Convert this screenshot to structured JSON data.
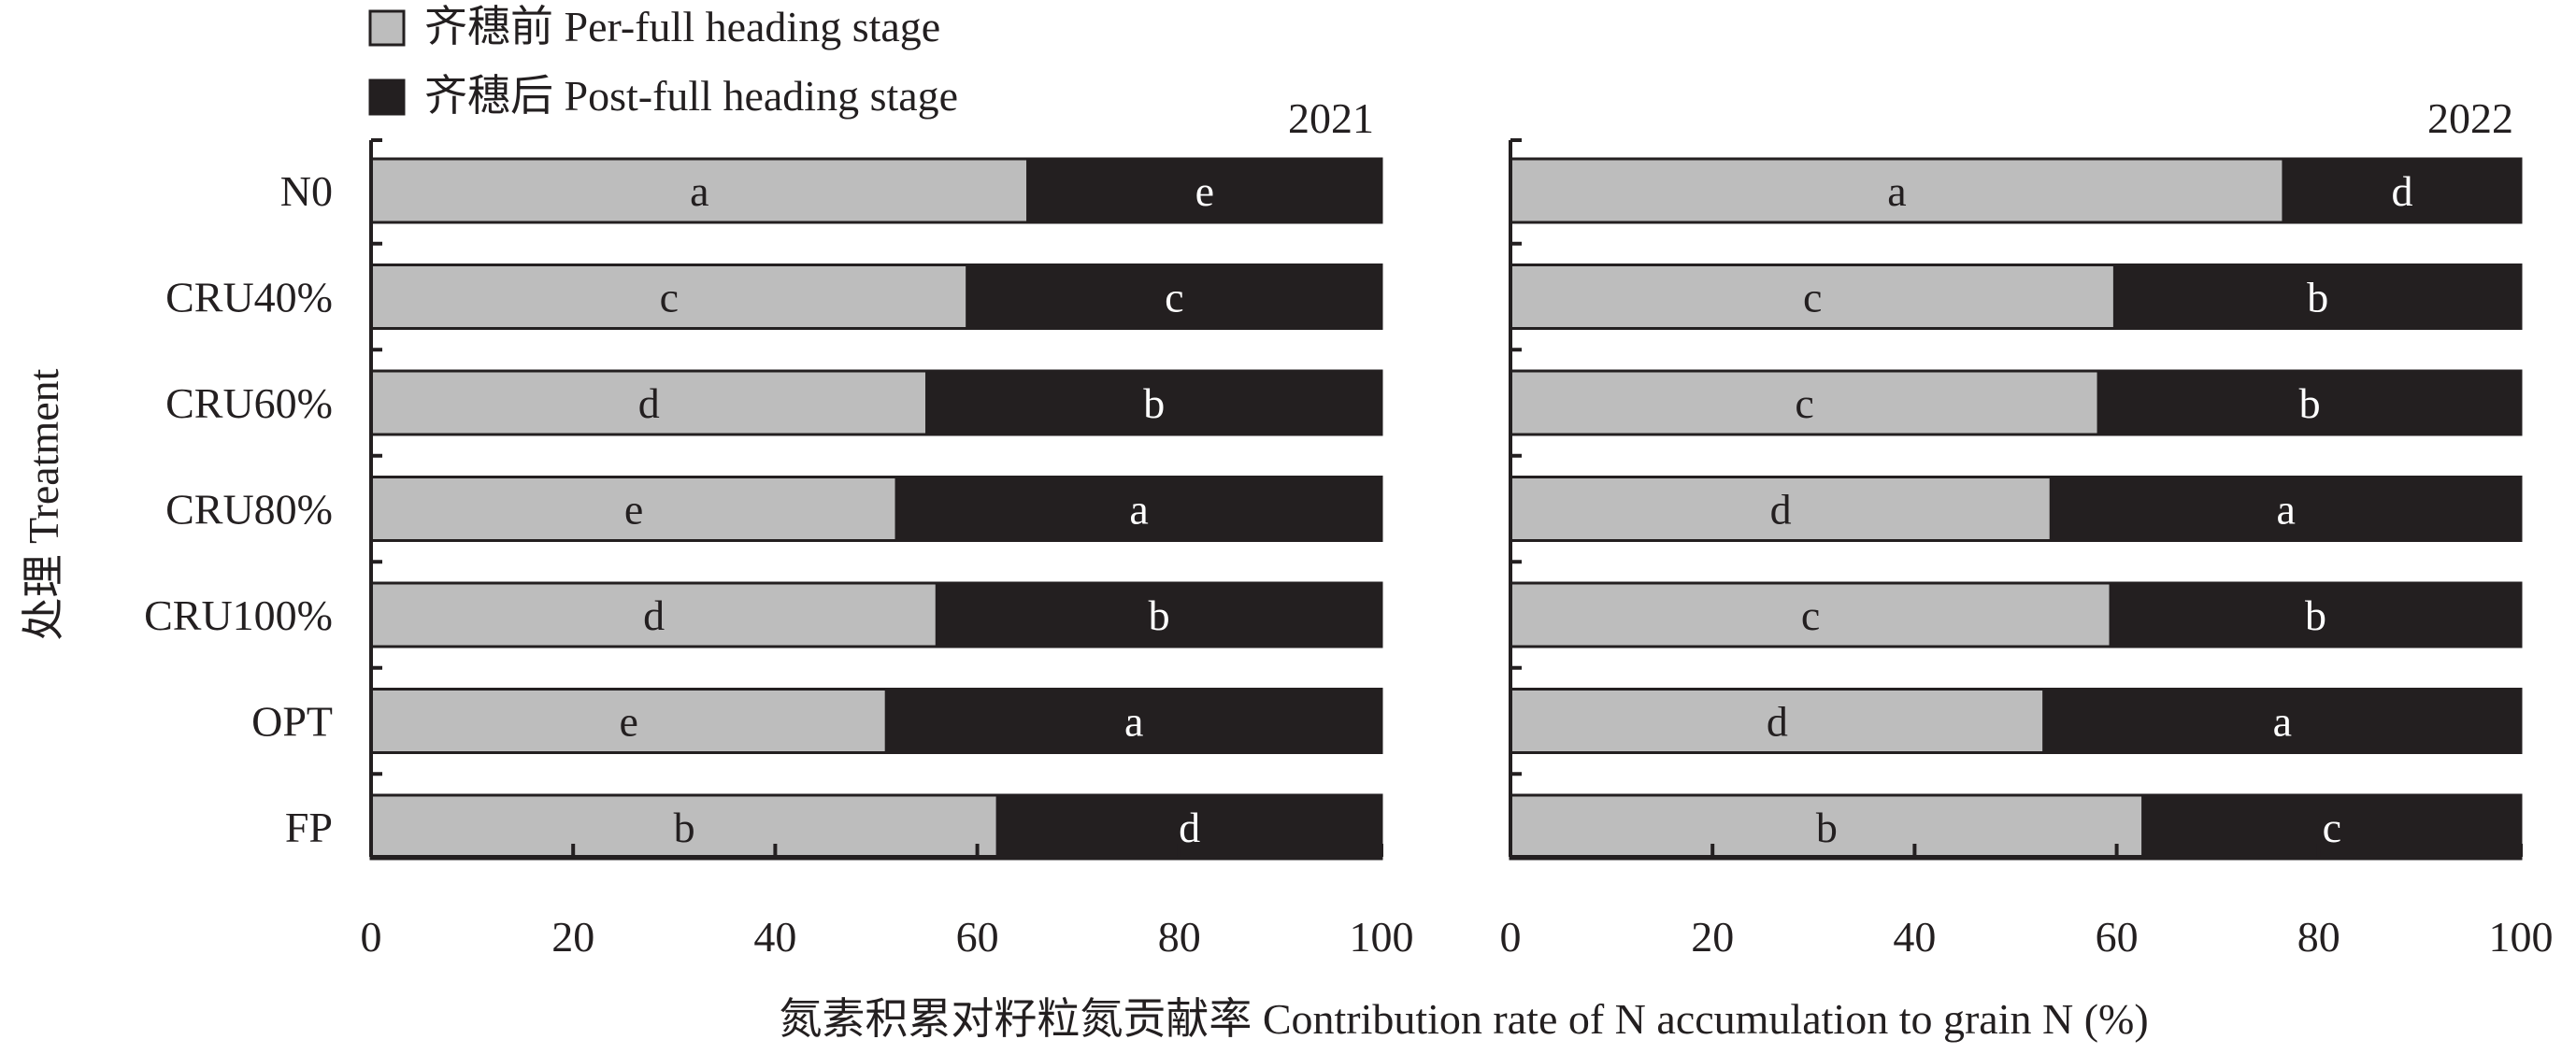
{
  "chart_data": {
    "type": "bar",
    "orientation": "horizontal",
    "stacked": true,
    "categories": [
      "N0",
      "CRU40%",
      "CRU60%",
      "CRU80%",
      "CRU100%",
      "OPT",
      "FP"
    ],
    "legend": {
      "items": [
        {
          "label": "齐穗前 Per-full heading stage",
          "color": "#bdbdbd"
        },
        {
          "label": "齐穗后 Post-full heading stage",
          "color": "#231f20"
        }
      ],
      "placement": "top-left"
    },
    "ylabel": "处理 Treatment",
    "xlabel": "氮素积累对籽粒氮贡献率 Contribution rate of N accumulation to grain N (%)",
    "xlim": [
      0,
      100
    ],
    "xticks": [
      "0",
      "20",
      "40",
      "60",
      "80",
      "100"
    ],
    "panels": [
      {
        "year": "2021",
        "series": [
          {
            "name": "齐穗前 Per-full heading stage",
            "values": [
              65,
              59,
              55,
              52,
              56,
              51,
              62
            ],
            "letters": [
              "a",
              "c",
              "d",
              "e",
              "d",
              "e",
              "b"
            ]
          },
          {
            "name": "齐穗后 Post-full heading stage",
            "values": [
              35,
              41,
              45,
              48,
              44,
              49,
              38
            ],
            "letters": [
              "e",
              "c",
              "b",
              "a",
              "b",
              "a",
              "d"
            ]
          }
        ]
      },
      {
        "year": "2022",
        "series": [
          {
            "name": "齐穗前 Per-full heading stage",
            "values": [
              76.5,
              59.8,
              58.2,
              53.5,
              59.4,
              52.8,
              62.6
            ],
            "letters": [
              "a",
              "c",
              "c",
              "d",
              "c",
              "d",
              "b"
            ]
          },
          {
            "name": "齐穗后 Post-full heading stage",
            "values": [
              23.5,
              40.2,
              41.8,
              46.5,
              40.6,
              47.2,
              37.4
            ],
            "letters": [
              "d",
              "b",
              "b",
              "a",
              "b",
              "a",
              "c"
            ]
          }
        ]
      }
    ],
    "grid": false
  }
}
